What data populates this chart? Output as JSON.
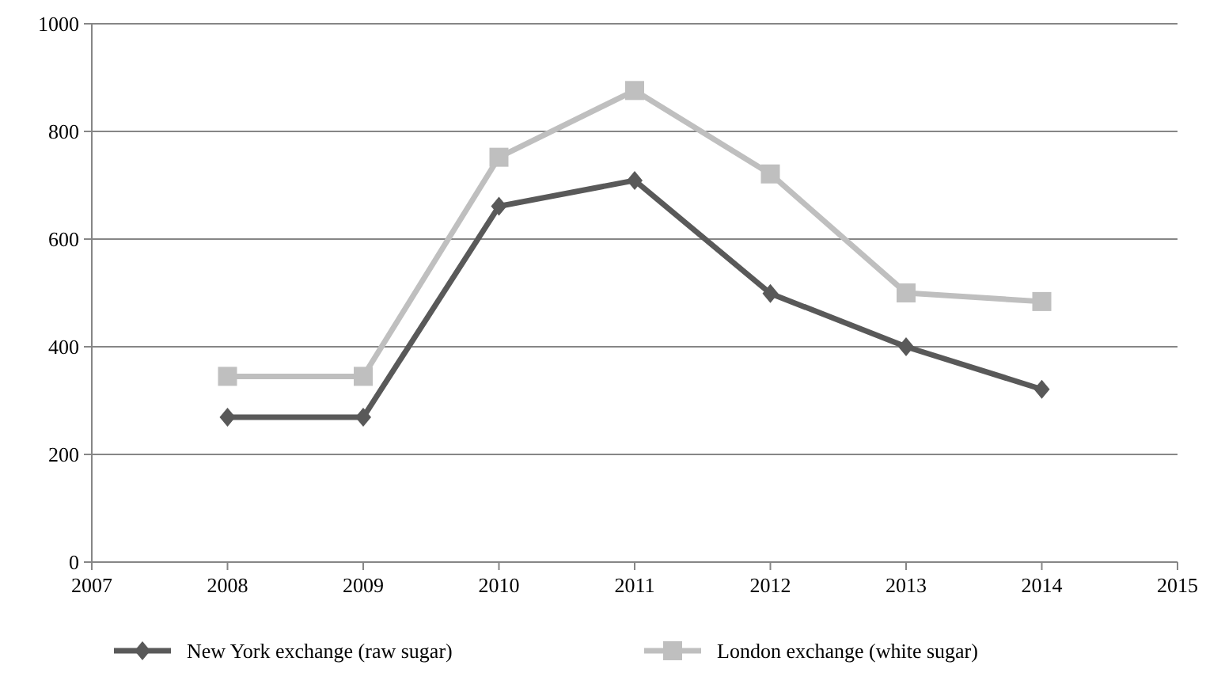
{
  "chart_data": {
    "type": "line",
    "x": [
      2008,
      2009,
      2010,
      2011,
      2012,
      2013,
      2014
    ],
    "xlim": [
      2007,
      2015
    ],
    "xticks": [
      2007,
      2008,
      2009,
      2010,
      2011,
      2012,
      2013,
      2014,
      2015
    ],
    "ylim": [
      0,
      1000
    ],
    "yticks": [
      0,
      200,
      400,
      600,
      800,
      1000
    ],
    "grid": "y",
    "legend": "bottom",
    "series": [
      {
        "name": "New York exchange (raw sugar)",
        "color": "#595959",
        "marker": "diamond",
        "values": [
          269,
          269,
          661,
          709,
          499,
          400,
          321
        ]
      },
      {
        "name": "London exchange (white sugar)",
        "color": "#bfbfbf",
        "marker": "square",
        "values": [
          345,
          345,
          752,
          876,
          721,
          500,
          484
        ]
      }
    ]
  }
}
